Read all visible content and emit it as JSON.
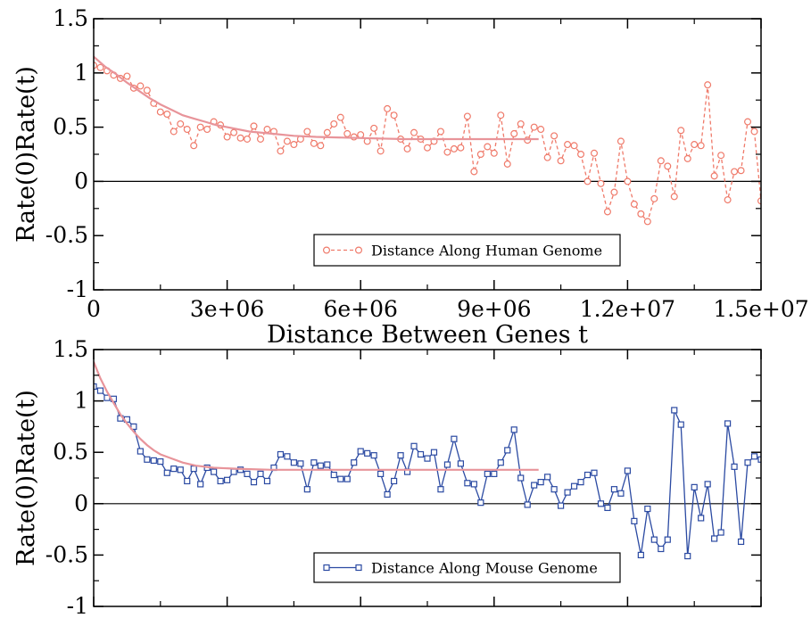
{
  "chart_data": [
    {
      "type": "line",
      "xlabel": "Distance Between Genes t",
      "ylabel": "Rate(0)Rate(t)",
      "xlim": [
        0,
        15000000
      ],
      "ylim": [
        -1,
        1.5
      ],
      "x_ticks": [
        0,
        3000000,
        6000000,
        9000000,
        12000000,
        15000000
      ],
      "x_tick_labels": [
        "0",
        "3e+06",
        "6e+06",
        "9e+06",
        "1.2e+07",
        "1.5e+07"
      ],
      "y_ticks": [
        -1,
        -0.5,
        0,
        0.5,
        1,
        1.5
      ],
      "y_tick_labels": [
        "-1",
        "-0.5",
        "0",
        "0.5",
        "1",
        "1.5"
      ],
      "legend": {
        "position": "bottom-center",
        "entries": [
          "Distance Along Human Genome"
        ]
      },
      "reference_line": 0,
      "series": [
        {
          "name": "Distance Along Human Genome",
          "color": "#ef7a6a",
          "marker": "circle",
          "line_style": "dashed",
          "points": [
            [
              0,
              1.07
            ],
            [
              150000,
              1.05
            ],
            [
              300000,
              1.02
            ],
            [
              450000,
              0.98
            ],
            [
              600000,
              0.95
            ],
            [
              750000,
              0.97
            ],
            [
              900000,
              0.86
            ],
            [
              1050000,
              0.88
            ],
            [
              1200000,
              0.84
            ],
            [
              1350000,
              0.72
            ],
            [
              1500000,
              0.64
            ],
            [
              1650000,
              0.62
            ],
            [
              1800000,
              0.46
            ],
            [
              1950000,
              0.53
            ],
            [
              2100000,
              0.48
            ],
            [
              2250000,
              0.33
            ],
            [
              2400000,
              0.5
            ],
            [
              2550000,
              0.48
            ],
            [
              2700000,
              0.55
            ],
            [
              2850000,
              0.52
            ],
            [
              3000000,
              0.41
            ],
            [
              3150000,
              0.45
            ],
            [
              3300000,
              0.4
            ],
            [
              3450000,
              0.39
            ],
            [
              3600000,
              0.51
            ],
            [
              3750000,
              0.39
            ],
            [
              3900000,
              0.48
            ],
            [
              4050000,
              0.46
            ],
            [
              4200000,
              0.28
            ],
            [
              4350000,
              0.37
            ],
            [
              4500000,
              0.34
            ],
            [
              4650000,
              0.39
            ],
            [
              4800000,
              0.46
            ],
            [
              4950000,
              0.35
            ],
            [
              5100000,
              0.33
            ],
            [
              5250000,
              0.45
            ],
            [
              5400000,
              0.53
            ],
            [
              5550000,
              0.59
            ],
            [
              5700000,
              0.44
            ],
            [
              5850000,
              0.41
            ],
            [
              6000000,
              0.43
            ],
            [
              6150000,
              0.37
            ],
            [
              6300000,
              0.49
            ],
            [
              6450000,
              0.28
            ],
            [
              6600000,
              0.67
            ],
            [
              6750000,
              0.61
            ],
            [
              6900000,
              0.39
            ],
            [
              7050000,
              0.3
            ],
            [
              7200000,
              0.45
            ],
            [
              7350000,
              0.39
            ],
            [
              7500000,
              0.31
            ],
            [
              7650000,
              0.37
            ],
            [
              7800000,
              0.46
            ],
            [
              7950000,
              0.27
            ],
            [
              8100000,
              0.3
            ],
            [
              8250000,
              0.31
            ],
            [
              8400000,
              0.6
            ],
            [
              8550000,
              0.09
            ],
            [
              8700000,
              0.25
            ],
            [
              8850000,
              0.32
            ],
            [
              9000000,
              0.26
            ],
            [
              9150000,
              0.61
            ],
            [
              9300000,
              0.16
            ],
            [
              9450000,
              0.44
            ],
            [
              9600000,
              0.53
            ],
            [
              9750000,
              0.38
            ],
            [
              9900000,
              0.5
            ],
            [
              10050000,
              0.48
            ],
            [
              10200000,
              0.22
            ],
            [
              10350000,
              0.42
            ],
            [
              10500000,
              0.19
            ],
            [
              10650000,
              0.34
            ],
            [
              10800000,
              0.33
            ],
            [
              10950000,
              0.25
            ],
            [
              11100000,
              0.0
            ],
            [
              11250000,
              0.26
            ],
            [
              11400000,
              -0.02
            ],
            [
              11550000,
              -0.28
            ],
            [
              11700000,
              -0.1
            ],
            [
              11850000,
              0.37
            ],
            [
              12000000,
              0.0
            ],
            [
              12150000,
              -0.21
            ],
            [
              12300000,
              -0.3
            ],
            [
              12450000,
              -0.37
            ],
            [
              12600000,
              -0.16
            ],
            [
              12750000,
              0.19
            ],
            [
              12900000,
              0.14
            ],
            [
              13050000,
              -0.14
            ],
            [
              13200000,
              0.47
            ],
            [
              13350000,
              0.21
            ],
            [
              13500000,
              0.34
            ],
            [
              13650000,
              0.33
            ],
            [
              13800000,
              0.89
            ],
            [
              13950000,
              0.05
            ],
            [
              14100000,
              0.24
            ],
            [
              14250000,
              -0.17
            ],
            [
              14400000,
              0.09
            ],
            [
              14550000,
              0.1
            ],
            [
              14700000,
              0.55
            ],
            [
              14850000,
              0.46
            ],
            [
              15000000,
              -0.18
            ]
          ]
        },
        {
          "color": "#e8949a",
          "line_style": "solid",
          "marker": "none",
          "points": [
            [
              0,
              1.15
            ],
            [
              250000,
              1.06
            ],
            [
              500000,
              0.99
            ],
            [
              750000,
              0.91
            ],
            [
              1000000,
              0.84
            ],
            [
              1250000,
              0.77
            ],
            [
              1500000,
              0.71
            ],
            [
              1750000,
              0.66
            ],
            [
              2000000,
              0.61
            ],
            [
              2250000,
              0.58
            ],
            [
              2500000,
              0.55
            ],
            [
              2750000,
              0.52
            ],
            [
              3000000,
              0.5
            ],
            [
              3500000,
              0.46
            ],
            [
              4000000,
              0.44
            ],
            [
              4500000,
              0.42
            ],
            [
              5000000,
              0.41
            ],
            [
              6000000,
              0.4
            ],
            [
              7000000,
              0.39
            ],
            [
              8000000,
              0.39
            ],
            [
              9000000,
              0.39
            ],
            [
              10000000,
              0.39
            ]
          ]
        }
      ]
    },
    {
      "type": "line",
      "xlabel": "",
      "ylabel": "Rate(0)Rate(t)",
      "xlim": [
        0,
        15000000
      ],
      "ylim": [
        -1,
        1.5
      ],
      "x_ticks": [
        0,
        3000000,
        6000000,
        9000000,
        12000000,
        15000000
      ],
      "y_ticks": [
        -1,
        -0.5,
        0,
        0.5,
        1,
        1.5
      ],
      "y_tick_labels": [
        "-1",
        "-0.5",
        "0",
        "0.5",
        "1",
        "1.5"
      ],
      "legend": {
        "position": "bottom-center",
        "entries": [
          "Distance Along Mouse Genome"
        ]
      },
      "reference_line": 0,
      "series": [
        {
          "name": "Distance Along Mouse Genome",
          "color": "#2b4aa2",
          "marker": "square",
          "line_style": "solid",
          "points": [
            [
              0,
              1.14
            ],
            [
              150000,
              1.1
            ],
            [
              300000,
              1.03
            ],
            [
              450000,
              1.02
            ],
            [
              600000,
              0.83
            ],
            [
              750000,
              0.82
            ],
            [
              900000,
              0.75
            ],
            [
              1050000,
              0.51
            ],
            [
              1200000,
              0.43
            ],
            [
              1350000,
              0.42
            ],
            [
              1500000,
              0.41
            ],
            [
              1650000,
              0.3
            ],
            [
              1800000,
              0.34
            ],
            [
              1950000,
              0.33
            ],
            [
              2100000,
              0.22
            ],
            [
              2250000,
              0.34
            ],
            [
              2400000,
              0.19
            ],
            [
              2550000,
              0.35
            ],
            [
              2700000,
              0.31
            ],
            [
              2850000,
              0.22
            ],
            [
              3000000,
              0.23
            ],
            [
              3150000,
              0.31
            ],
            [
              3300000,
              0.33
            ],
            [
              3450000,
              0.29
            ],
            [
              3600000,
              0.21
            ],
            [
              3750000,
              0.29
            ],
            [
              3900000,
              0.22
            ],
            [
              4050000,
              0.35
            ],
            [
              4200000,
              0.48
            ],
            [
              4350000,
              0.46
            ],
            [
              4500000,
              0.4
            ],
            [
              4650000,
              0.39
            ],
            [
              4800000,
              0.14
            ],
            [
              4950000,
              0.4
            ],
            [
              5100000,
              0.37
            ],
            [
              5250000,
              0.38
            ],
            [
              5400000,
              0.28
            ],
            [
              5550000,
              0.24
            ],
            [
              5700000,
              0.24
            ],
            [
              5850000,
              0.4
            ],
            [
              6000000,
              0.51
            ],
            [
              6150000,
              0.49
            ],
            [
              6300000,
              0.47
            ],
            [
              6450000,
              0.29
            ],
            [
              6600000,
              0.09
            ],
            [
              6750000,
              0.22
            ],
            [
              6900000,
              0.47
            ],
            [
              7050000,
              0.31
            ],
            [
              7200000,
              0.56
            ],
            [
              7350000,
              0.48
            ],
            [
              7500000,
              0.44
            ],
            [
              7650000,
              0.5
            ],
            [
              7800000,
              0.14
            ],
            [
              7950000,
              0.38
            ],
            [
              8100000,
              0.63
            ],
            [
              8250000,
              0.39
            ],
            [
              8400000,
              0.2
            ],
            [
              8550000,
              0.19
            ],
            [
              8700000,
              0.01
            ],
            [
              8850000,
              0.29
            ],
            [
              9000000,
              0.29
            ],
            [
              9150000,
              0.4
            ],
            [
              9300000,
              0.52
            ],
            [
              9450000,
              0.72
            ],
            [
              9600000,
              0.25
            ],
            [
              9750000,
              -0.01
            ],
            [
              9900000,
              0.18
            ],
            [
              10050000,
              0.21
            ],
            [
              10200000,
              0.26
            ],
            [
              10350000,
              0.14
            ],
            [
              10500000,
              -0.02
            ],
            [
              10650000,
              0.11
            ],
            [
              10800000,
              0.17
            ],
            [
              10950000,
              0.21
            ],
            [
              11100000,
              0.28
            ],
            [
              11250000,
              0.3
            ],
            [
              11400000,
              0.0
            ],
            [
              11550000,
              -0.04
            ],
            [
              11700000,
              0.14
            ],
            [
              11850000,
              0.1
            ],
            [
              12000000,
              0.32
            ],
            [
              12150000,
              -0.17
            ],
            [
              12300000,
              -0.5
            ],
            [
              12450000,
              -0.05
            ],
            [
              12600000,
              -0.35
            ],
            [
              12750000,
              -0.44
            ],
            [
              12900000,
              -0.35
            ],
            [
              13050000,
              0.91
            ],
            [
              13200000,
              0.77
            ],
            [
              13350000,
              -0.51
            ],
            [
              13500000,
              0.16
            ],
            [
              13650000,
              -0.14
            ],
            [
              13800000,
              0.19
            ],
            [
              13950000,
              -0.34
            ],
            [
              14100000,
              -0.28
            ],
            [
              14250000,
              0.78
            ],
            [
              14400000,
              0.36
            ],
            [
              14550000,
              -0.37
            ],
            [
              14700000,
              0.4
            ],
            [
              14850000,
              0.46
            ],
            [
              15000000,
              0.43
            ]
          ]
        },
        {
          "color": "#e8949a",
          "line_style": "solid",
          "marker": "none",
          "points": [
            [
              0,
              1.38
            ],
            [
              150000,
              1.22
            ],
            [
              300000,
              1.09
            ],
            [
              450000,
              0.98
            ],
            [
              600000,
              0.87
            ],
            [
              750000,
              0.78
            ],
            [
              900000,
              0.7
            ],
            [
              1050000,
              0.63
            ],
            [
              1200000,
              0.57
            ],
            [
              1350000,
              0.52
            ],
            [
              1500000,
              0.48
            ],
            [
              1750000,
              0.44
            ],
            [
              2000000,
              0.4
            ],
            [
              2300000,
              0.37
            ],
            [
              2700000,
              0.35
            ],
            [
              3200000,
              0.34
            ],
            [
              4000000,
              0.33
            ],
            [
              5000000,
              0.33
            ],
            [
              6000000,
              0.33
            ],
            [
              7000000,
              0.33
            ],
            [
              8000000,
              0.33
            ],
            [
              9000000,
              0.33
            ],
            [
              10000000,
              0.33
            ]
          ]
        }
      ]
    }
  ]
}
